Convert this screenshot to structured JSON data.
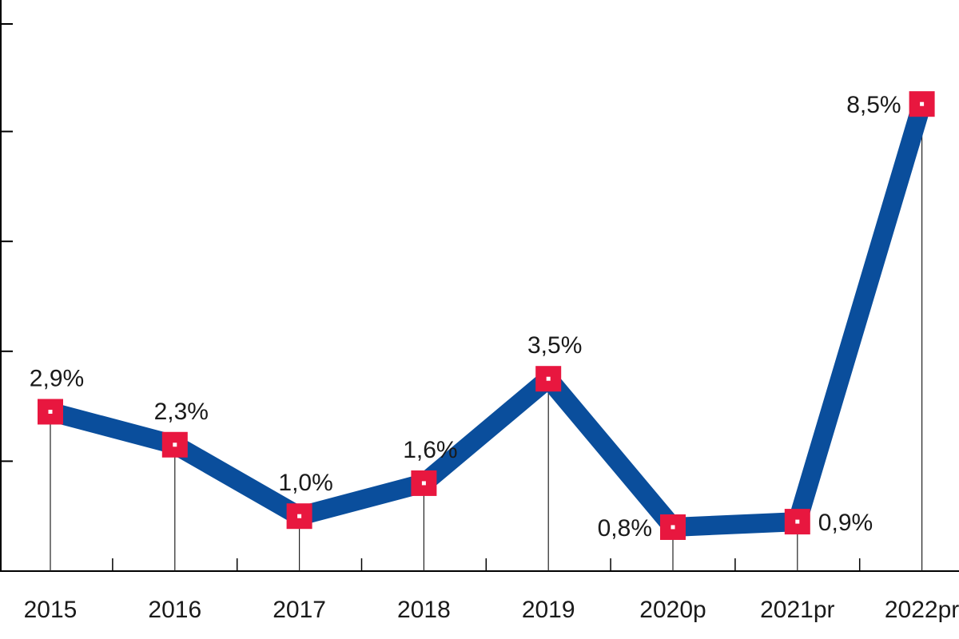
{
  "chart_data": {
    "type": "line",
    "categories": [
      "2015",
      "2016",
      "2017",
      "2018",
      "2019",
      "2020p",
      "2021pr",
      "2022pr"
    ],
    "values": [
      2.9,
      2.3,
      1.0,
      1.6,
      3.5,
      0.8,
      0.9,
      8.5
    ],
    "data_labels": [
      "2,9%",
      "2,3%",
      "1,0%",
      "1,6%",
      "3,5%",
      "0,8%",
      "0,9%",
      "8,5%"
    ],
    "ylim": [
      0,
      10.5
    ],
    "y_ticks": [
      0,
      2,
      4,
      6,
      8,
      10
    ],
    "grid": false,
    "legend": "none",
    "colors": {
      "line": "#0a4e9c",
      "marker": "#e8173f",
      "marker_center": "#ffffff",
      "axis": "#000000",
      "text": "#1a1a1a"
    }
  }
}
